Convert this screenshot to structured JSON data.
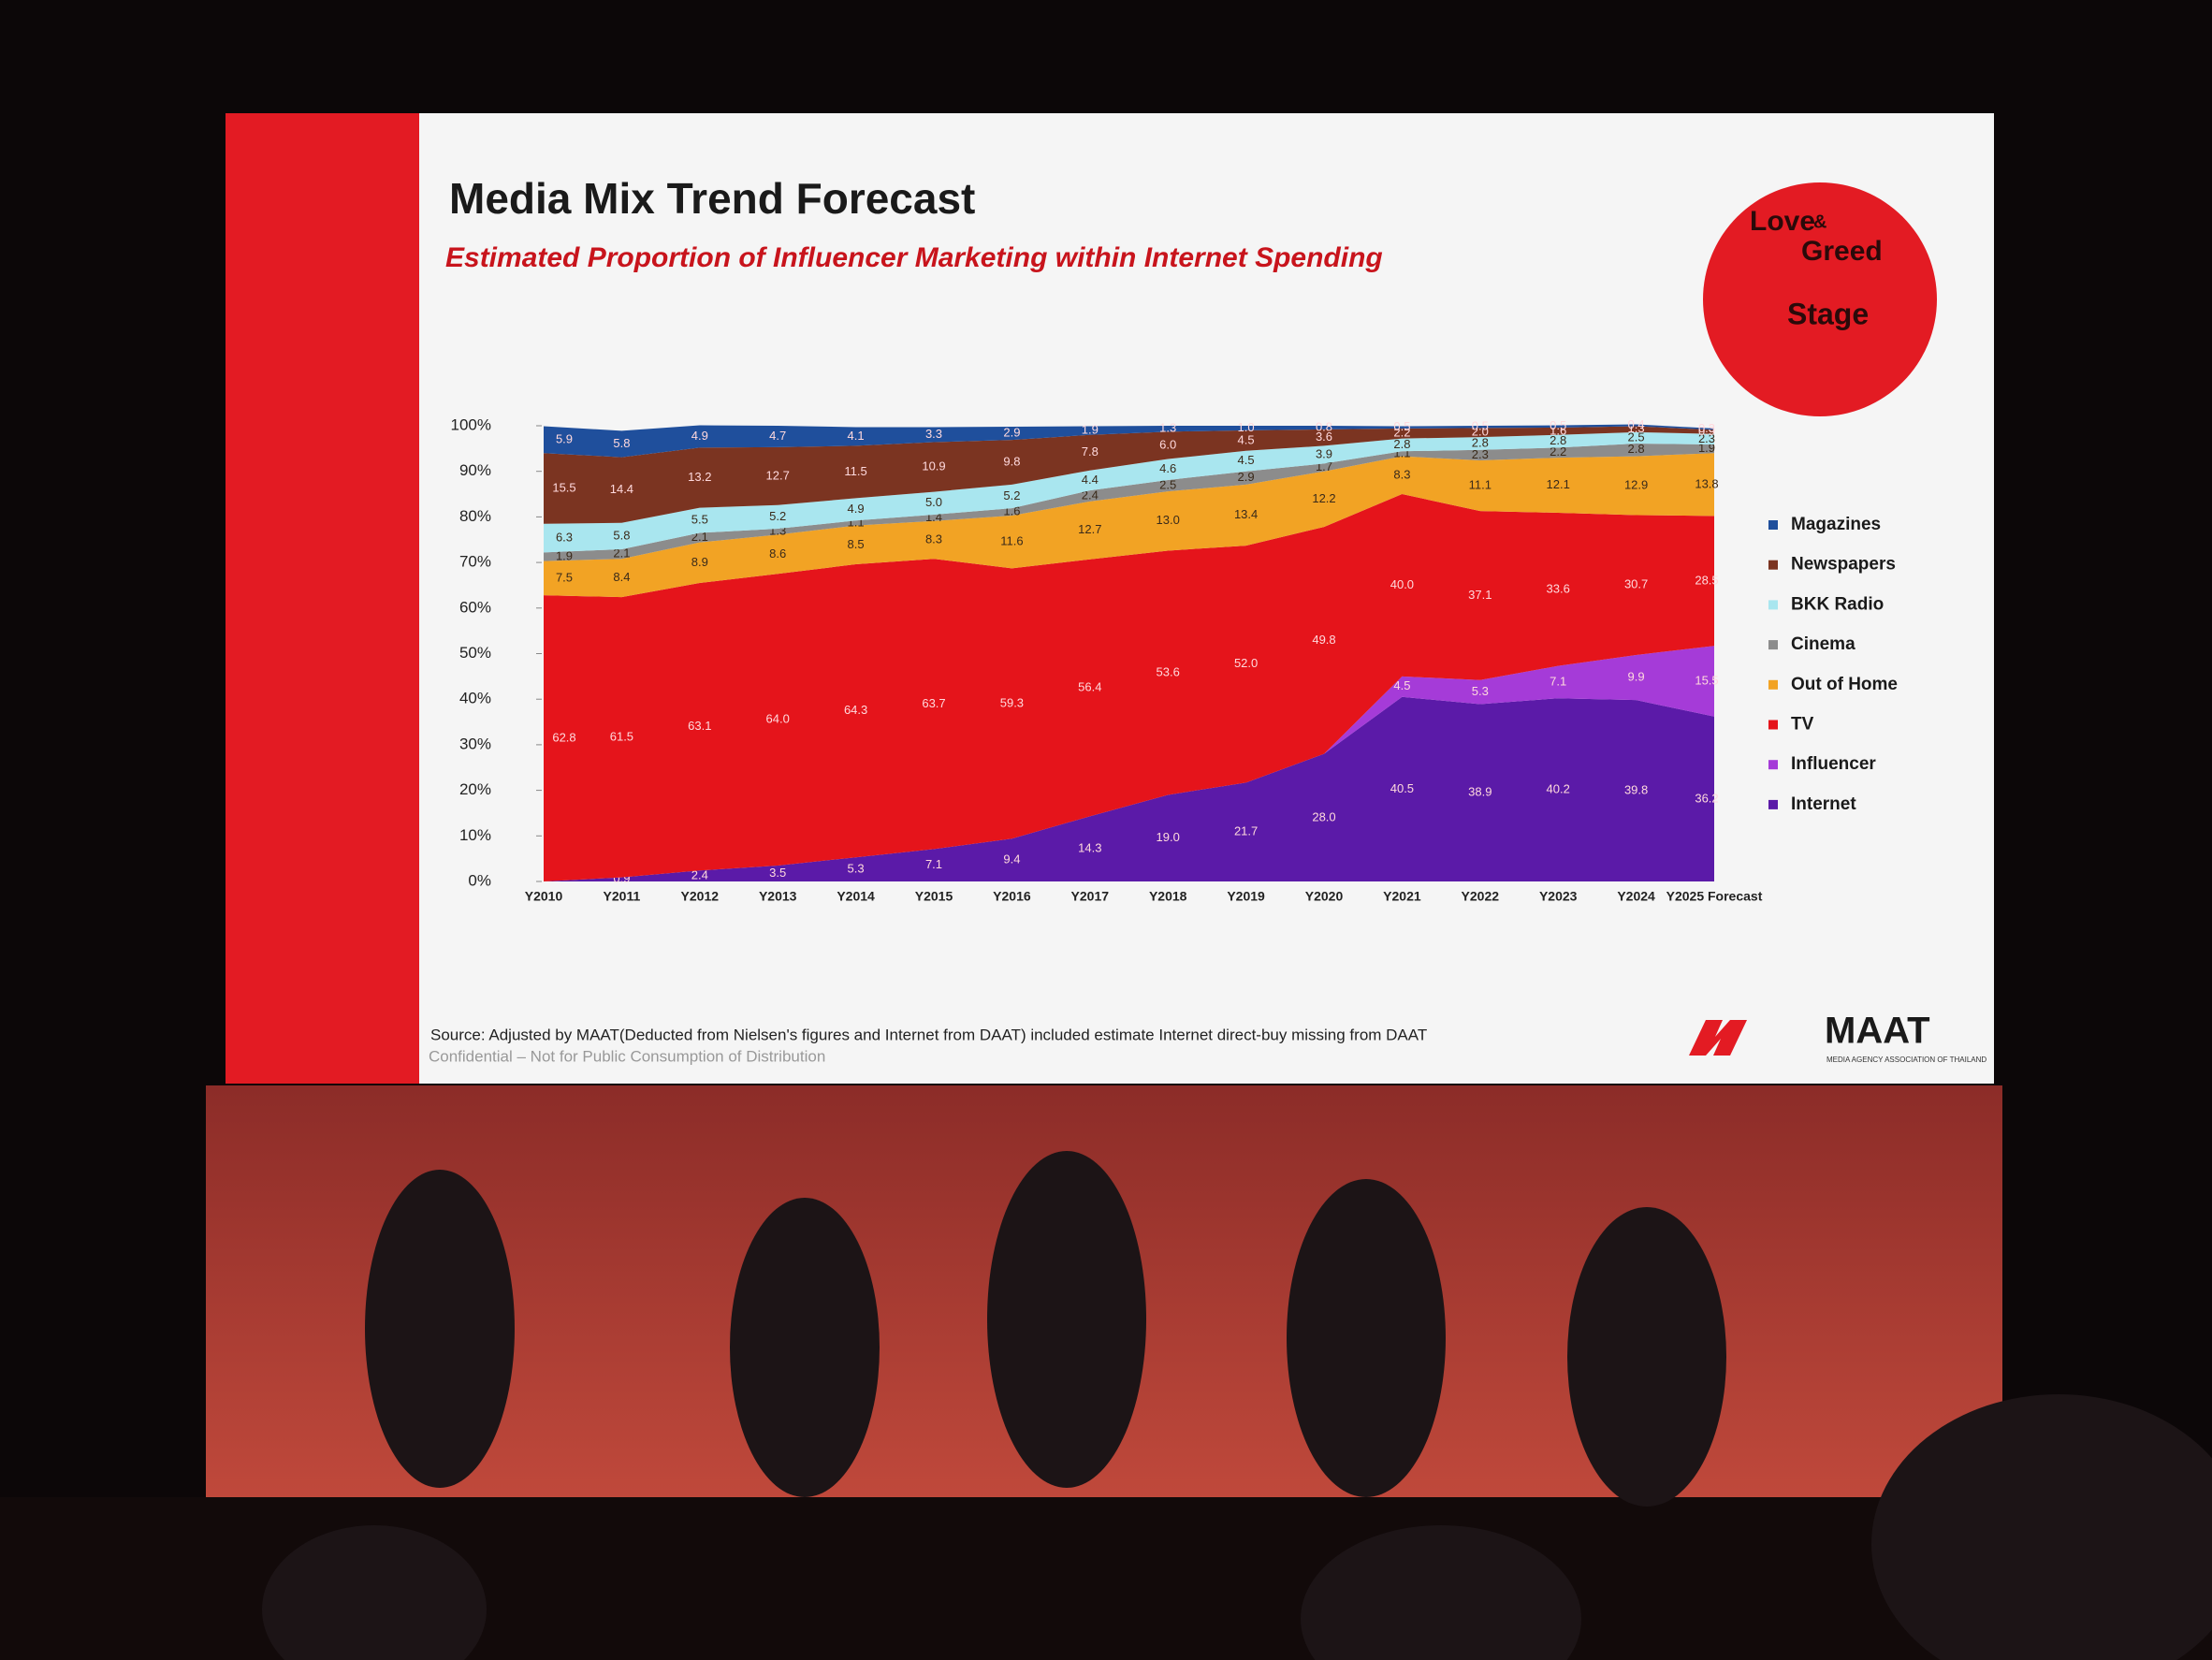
{
  "chart_data": {
    "type": "stacked_area",
    "title": "Media Mix Trend Forecast",
    "subtitle": "Estimated Proportion of Influencer Marketing within Internet Spending",
    "categories": [
      "Y2010",
      "Y2011",
      "Y2012",
      "Y2013",
      "Y2014",
      "Y2015",
      "Y2016",
      "Y2017",
      "Y2018",
      "Y2019",
      "Y2020",
      "Y2021",
      "Y2022",
      "Y2023",
      "Y2024",
      "Y2025 Forecast"
    ],
    "series": [
      {
        "name": "Internet",
        "color": "#5b1aa8",
        "values": [
          0,
          0.9,
          2.4,
          3.5,
          5.3,
          7.1,
          9.4,
          14.3,
          19.0,
          21.7,
          28.0,
          40.5,
          38.9,
          40.2,
          39.8,
          36.2
        ],
        "value_labels": [
          null,
          "0.9",
          "2.4",
          "3.5",
          "5.3",
          "7.1",
          "9.4",
          "14.3",
          "19.0",
          "21.7",
          "28.0",
          "40.5",
          "38.9",
          "40.2",
          "39.8",
          "36.2"
        ]
      },
      {
        "name": "Influencer",
        "color": "#a53bd8",
        "values": [
          0,
          0,
          0,
          0,
          0,
          0,
          0,
          0,
          0,
          0,
          0,
          4.5,
          5.3,
          7.1,
          9.9,
          15.5
        ]
      },
      {
        "name": "TV",
        "color": "#e5141b",
        "values": [
          62.8,
          61.5,
          63.1,
          64.0,
          64.3,
          63.7,
          59.3,
          56.4,
          53.6,
          52.0,
          49.8,
          40.0,
          37.1,
          33.6,
          30.7,
          28.5
        ],
        "value_labels": [
          "62.8",
          "61.5",
          "63.1",
          "64.0",
          "64.3",
          "63.7",
          "59.3",
          "56.4",
          "53.6",
          "52.0",
          "49.8",
          "40.0",
          "37.1",
          "33.6",
          "30.7",
          "28.5"
        ]
      },
      {
        "name": "Out of Home",
        "color": "#f2a324",
        "values": [
          7.5,
          8.4,
          8.9,
          8.6,
          8.5,
          8.3,
          11.6,
          12.7,
          13.0,
          13.4,
          12.2,
          8.3,
          11.1,
          12.1,
          12.9,
          13.8
        ],
        "value_labels": [
          "7.5",
          "8.4",
          "8.9",
          "8.6",
          "8.5",
          "8.3",
          "11.6",
          "12.7",
          "13.0",
          "13.4",
          "12.2",
          "8.3",
          "11.1",
          "12.1",
          "12.9",
          "13.8"
        ]
      },
      {
        "name": "Cinema",
        "color": "#8c8c8c",
        "values": [
          1.9,
          2.1,
          2.1,
          1.3,
          1.1,
          1.4,
          1.6,
          2.4,
          2.5,
          2.9,
          1.7,
          1.1,
          2.3,
          2.2,
          2.8,
          1.9
        ]
      },
      {
        "name": "BKK Radio",
        "color": "#a9e6ef",
        "values": [
          6.3,
          5.8,
          5.5,
          5.2,
          4.9,
          5.0,
          5.2,
          4.4,
          4.6,
          4.5,
          3.9,
          2.8,
          2.8,
          2.8,
          2.5,
          2.3
        ],
        "value_labels": [
          "6.3",
          "5.8",
          "5.5",
          "5.2",
          "4.9",
          "5.0",
          "5.2",
          "4.4",
          "4.6",
          "4.5",
          "3.9",
          "2.8",
          "2.8",
          "2.8",
          "2.5",
          "2.3"
        ]
      },
      {
        "name": "Newspapers",
        "color": "#7b3421",
        "values": [
          15.5,
          14.4,
          13.2,
          12.7,
          11.5,
          10.9,
          9.8,
          7.8,
          6.0,
          4.5,
          3.6,
          2.2,
          2.0,
          1.6,
          1.3,
          0.9
        ],
        "value_labels": [
          "15.5",
          "14.4",
          "13.2",
          "12.7",
          "11.5",
          "10.9",
          "9.8",
          "7.8",
          "6.0",
          "4.5",
          "3.6",
          "2.2",
          "2.0",
          "1.6",
          "1.3",
          "0.9"
        ]
      },
      {
        "name": "Magazines",
        "color": "#1f4f9c",
        "values": [
          5.9,
          5.8,
          4.9,
          4.7,
          4.1,
          3.3,
          2.9,
          1.9,
          1.3,
          1.0,
          0.8,
          0.5,
          0.5,
          0.5,
          0.4,
          0.3
        ],
        "value_labels": [
          "5.9",
          "5.8",
          "4.9",
          "4.7",
          "4.1",
          "3.3",
          "2.9",
          "1.9",
          "1.3",
          "1.0",
          "0.8",
          "0.5",
          "0.5",
          "0.5",
          "0.4",
          "0.3"
        ]
      }
    ],
    "ylim": [
      0,
      100
    ],
    "yticks": [
      {
        "value": 0,
        "label": "0%"
      },
      {
        "value": 10,
        "label": "10%"
      },
      {
        "value": 20,
        "label": "20%"
      },
      {
        "value": 30,
        "label": "30%"
      },
      {
        "value": 40,
        "label": "40%"
      },
      {
        "value": 50,
        "label": "50%"
      },
      {
        "value": 60,
        "label": "60%"
      },
      {
        "value": 70,
        "label": "70%"
      },
      {
        "value": 80,
        "label": "80%"
      },
      {
        "value": 90,
        "label": "90%"
      },
      {
        "value": 100,
        "label": "100%"
      }
    ],
    "legend": "right",
    "source": "Source: Adjusted by MAAT(Deducted  from Nielsen's figures and Internet from DAAT) included estimate Internet direct-buy missing from DAAT",
    "note": "Confidential – Not for Public Consumption of Distribution"
  },
  "logos": {
    "stage": [
      "Love",
      "&",
      "Greed",
      "Stage"
    ],
    "maat": "MAAT",
    "maat_full": "MEDIA AGENCY ASSOCIATION OF THAILAND"
  }
}
